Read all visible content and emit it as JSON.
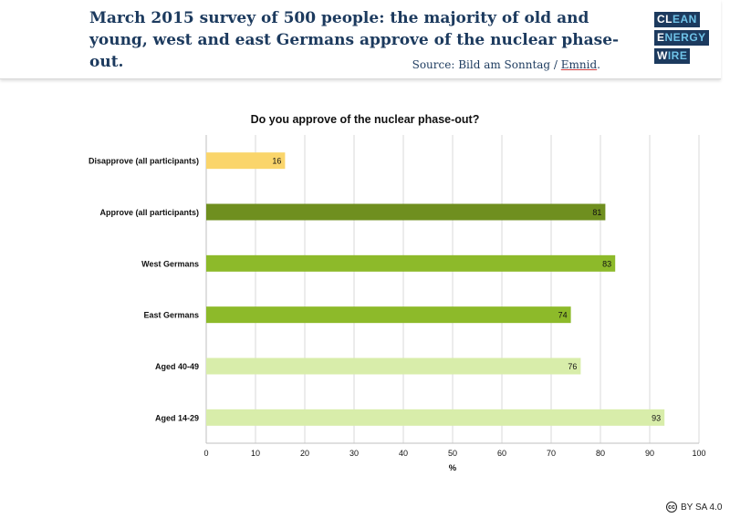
{
  "header": {
    "title": "March 2015 survey of 500 people: the majority of old and young, west and east Germans approve of the nuclear phase-out.",
    "source_prefix": "Source: Bild am Sonntag / ",
    "source_emnid": "Emnid",
    "source_suffix": ".",
    "logo_clean_a": "CL",
    "logo_clean_b": "EAN",
    "logo_energy_a": "E",
    "logo_energy_b": "NERGY",
    "logo_wire_a": "W",
    "logo_wire_b": "IRE"
  },
  "license": {
    "cc_symbol": "cc",
    "text": "BY SA 4.0"
  },
  "chart_data": {
    "type": "bar",
    "orientation": "horizontal",
    "title": "Do you approve of the nuclear phase-out?",
    "xlabel": "%",
    "ylabel": "",
    "xlim": [
      0,
      100
    ],
    "xticks": [
      0,
      10,
      20,
      30,
      40,
      50,
      60,
      70,
      80,
      90,
      100
    ],
    "grid": true,
    "categories": [
      "Disapprove (all participants)",
      "Approve (all participants)",
      "West Germans",
      "East Germans",
      "Aged 40-49",
      "Aged 14-29"
    ],
    "values": [
      16,
      81,
      83,
      74,
      76,
      93
    ],
    "colors": [
      "#fad56b",
      "#6f8f1f",
      "#8dba2a",
      "#8dba2a",
      "#d8edaa",
      "#d8edaa"
    ]
  }
}
